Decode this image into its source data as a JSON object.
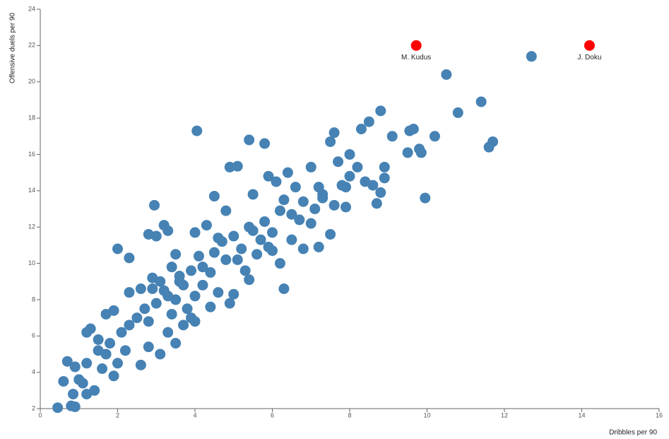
{
  "chart_data": {
    "type": "scatter",
    "x_label": "Dribbles per 90",
    "y_label": "Offensive duels per 90",
    "xlim": [
      0,
      16
    ],
    "ylim": [
      2,
      24
    ],
    "xticks": [
      0,
      2,
      4,
      6,
      8,
      10,
      12,
      14,
      16
    ],
    "yticks": [
      2,
      4,
      6,
      8,
      10,
      12,
      14,
      16,
      18,
      20,
      22,
      24
    ],
    "points": {
      "color": "#4682b4",
      "x": [
        0.45,
        0.8,
        0.9,
        0.6,
        0.85,
        0.7,
        0.9,
        1.2,
        1.4,
        1.1,
        1.2,
        1.3,
        1.2,
        1.0,
        1.5,
        1.6,
        1.8,
        1.9,
        2.0,
        1.7,
        1.9,
        2.0,
        2.3,
        2.3,
        2.2,
        2.3,
        2.6,
        2.6,
        2.7,
        2.8,
        2.8,
        2.8,
        2.9,
        2.95,
        3.0,
        3.0,
        3.1,
        3.1,
        3.2,
        3.2,
        3.3,
        3.3,
        3.4,
        3.4,
        3.5,
        3.5,
        3.5,
        3.6,
        3.7,
        3.7,
        3.8,
        3.9,
        4.0,
        4.0,
        4.0,
        4.05,
        4.1,
        4.2,
        4.3,
        4.4,
        4.4,
        4.5,
        4.5,
        4.6,
        4.6,
        4.8,
        4.8,
        4.9,
        4.9,
        5.0,
        5.1,
        5.0,
        5.2,
        5.3,
        5.4,
        5.4,
        5.4,
        5.5,
        5.6,
        5.7,
        5.8,
        5.8,
        5.9,
        6.0,
        6.0,
        6.1,
        6.2,
        6.2,
        6.3,
        6.3,
        6.4,
        6.5,
        6.6,
        6.7,
        6.8,
        6.8,
        7.0,
        7.0,
        7.1,
        7.2,
        7.2,
        7.3,
        7.5,
        7.5,
        7.6,
        7.6,
        7.7,
        7.8,
        7.9,
        8.0,
        8.0,
        8.2,
        8.3,
        8.4,
        8.5,
        8.6,
        8.7,
        8.8,
        8.8,
        8.9,
        8.9,
        9.1,
        9.5,
        9.55,
        9.65,
        9.8,
        9.85,
        9.95,
        10.2,
        10.5,
        10.8,
        11.4,
        11.6,
        11.7,
        12.7,
        1.5,
        1.7,
        2.1,
        2.5,
        2.9,
        3.3,
        3.6,
        3.9,
        4.2,
        4.7,
        5.1,
        5.5,
        5.9,
        6.5,
        7.3,
        7.9
      ],
      "y": [
        2.05,
        2.15,
        2.1,
        3.5,
        2.8,
        4.6,
        4.3,
        2.8,
        3.0,
        3.4,
        4.5,
        6.4,
        6.2,
        3.6,
        5.2,
        4.2,
        5.6,
        3.8,
        4.5,
        7.2,
        7.4,
        10.8,
        8.4,
        6.6,
        5.2,
        10.3,
        8.6,
        4.4,
        7.5,
        5.4,
        6.8,
        11.6,
        9.2,
        13.2,
        11.5,
        7.8,
        9.0,
        5.0,
        12.1,
        8.5,
        11.8,
        6.2,
        9.8,
        7.2,
        8.0,
        10.5,
        5.6,
        9.3,
        6.6,
        8.8,
        7.5,
        9.6,
        8.2,
        6.8,
        11.7,
        17.3,
        10.4,
        8.8,
        12.1,
        9.5,
        7.6,
        13.7,
        10.6,
        11.4,
        8.4,
        12.9,
        10.2,
        15.3,
        7.8,
        11.5,
        15.35,
        8.3,
        10.8,
        9.6,
        16.8,
        12.0,
        9.1,
        13.8,
        10.5,
        11.3,
        16.6,
        12.3,
        14.8,
        11.7,
        10.7,
        14.5,
        12.9,
        10.0,
        8.6,
        13.5,
        15.0,
        11.3,
        14.2,
        12.4,
        13.4,
        10.8,
        15.3,
        12.2,
        13.0,
        14.2,
        10.9,
        13.8,
        11.6,
        16.7,
        17.2,
        13.2,
        15.6,
        14.3,
        13.1,
        16.0,
        14.8,
        15.3,
        17.4,
        14.5,
        17.8,
        14.3,
        13.3,
        18.4,
        13.9,
        15.3,
        14.7,
        17.0,
        16.1,
        17.3,
        17.4,
        16.3,
        16.1,
        13.6,
        17.0,
        20.4,
        18.3,
        18.9,
        16.4,
        16.7,
        21.4,
        5.8,
        5.0,
        6.2,
        7.0,
        8.6,
        8.2,
        9.0,
        7.0,
        9.8,
        11.2,
        10.2,
        11.8,
        10.9,
        12.7,
        13.6,
        14.2
      ]
    },
    "highlights": [
      {
        "label": "M. Kudus",
        "x": 9.72,
        "y": 22.0,
        "color": "#ff0000"
      },
      {
        "label": "J. Doku",
        "x": 14.2,
        "y": 22.0,
        "color": "#ff0000"
      }
    ]
  }
}
